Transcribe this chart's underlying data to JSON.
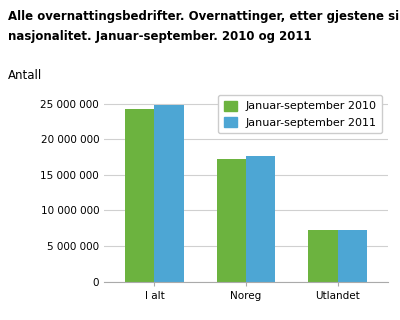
{
  "title_line1": "Alle overnattingsbedrifter. Overnattinger, etter gjestene sin",
  "title_line2": "nasjonalitet. Januar-september. 2010 og 2011",
  "ylabel_text": "Antall",
  "categories": [
    "I alt",
    "Noreg",
    "Utlandet"
  ],
  "series": [
    {
      "label": "Januar-september 2010",
      "color": "#6cb33f",
      "values": [
        24300000,
        17200000,
        7300000
      ]
    },
    {
      "label": "Januar-september 2011",
      "color": "#4da6d4",
      "values": [
        24800000,
        17700000,
        7250000
      ]
    }
  ],
  "ylim": [
    0,
    27000000
  ],
  "yticks": [
    0,
    5000000,
    10000000,
    15000000,
    20000000,
    25000000
  ],
  "ytick_labels": [
    "0",
    "5 000 000",
    "10 000 000",
    "15 000 000",
    "20 000 000",
    "25 000 000"
  ],
  "grid_color": "#d0d0d0",
  "background_color": "#ffffff",
  "title_fontsize": 8.5,
  "antall_fontsize": 8.5,
  "tick_fontsize": 7.5,
  "legend_fontsize": 8,
  "bar_width": 0.32
}
